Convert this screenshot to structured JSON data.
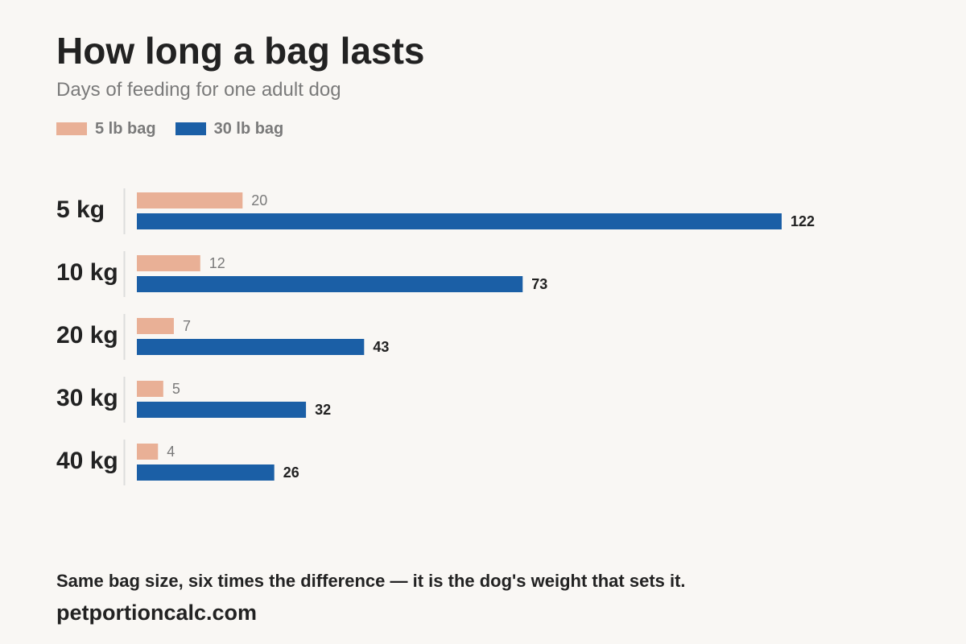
{
  "chart_data": {
    "type": "bar",
    "orientation": "horizontal",
    "title": "How long a bag lasts",
    "subtitle": "Days of feeding for one adult dog",
    "categories": [
      "5 kg",
      "10 kg",
      "20 kg",
      "30 kg",
      "40 kg"
    ],
    "series": [
      {
        "name": "5 lb bag",
        "values": [
          20,
          12,
          7,
          5,
          4
        ],
        "color": "#e9b096"
      },
      {
        "name": "30 lb bag",
        "values": [
          122,
          73,
          43,
          32,
          26
        ],
        "color": "#1b5fa6"
      }
    ],
    "xlim": [
      0,
      122
    ],
    "grid": false,
    "legend_position": "top-left",
    "data_labels": true
  },
  "footnote": "Same bag size, six times the difference — it is the dog's weight that sets it.",
  "source": "petportioncalc.com",
  "colors": {
    "background": "#f9f7f4",
    "text": "#222222",
    "muted": "#7a7a7a",
    "axis": "#dddddd"
  }
}
